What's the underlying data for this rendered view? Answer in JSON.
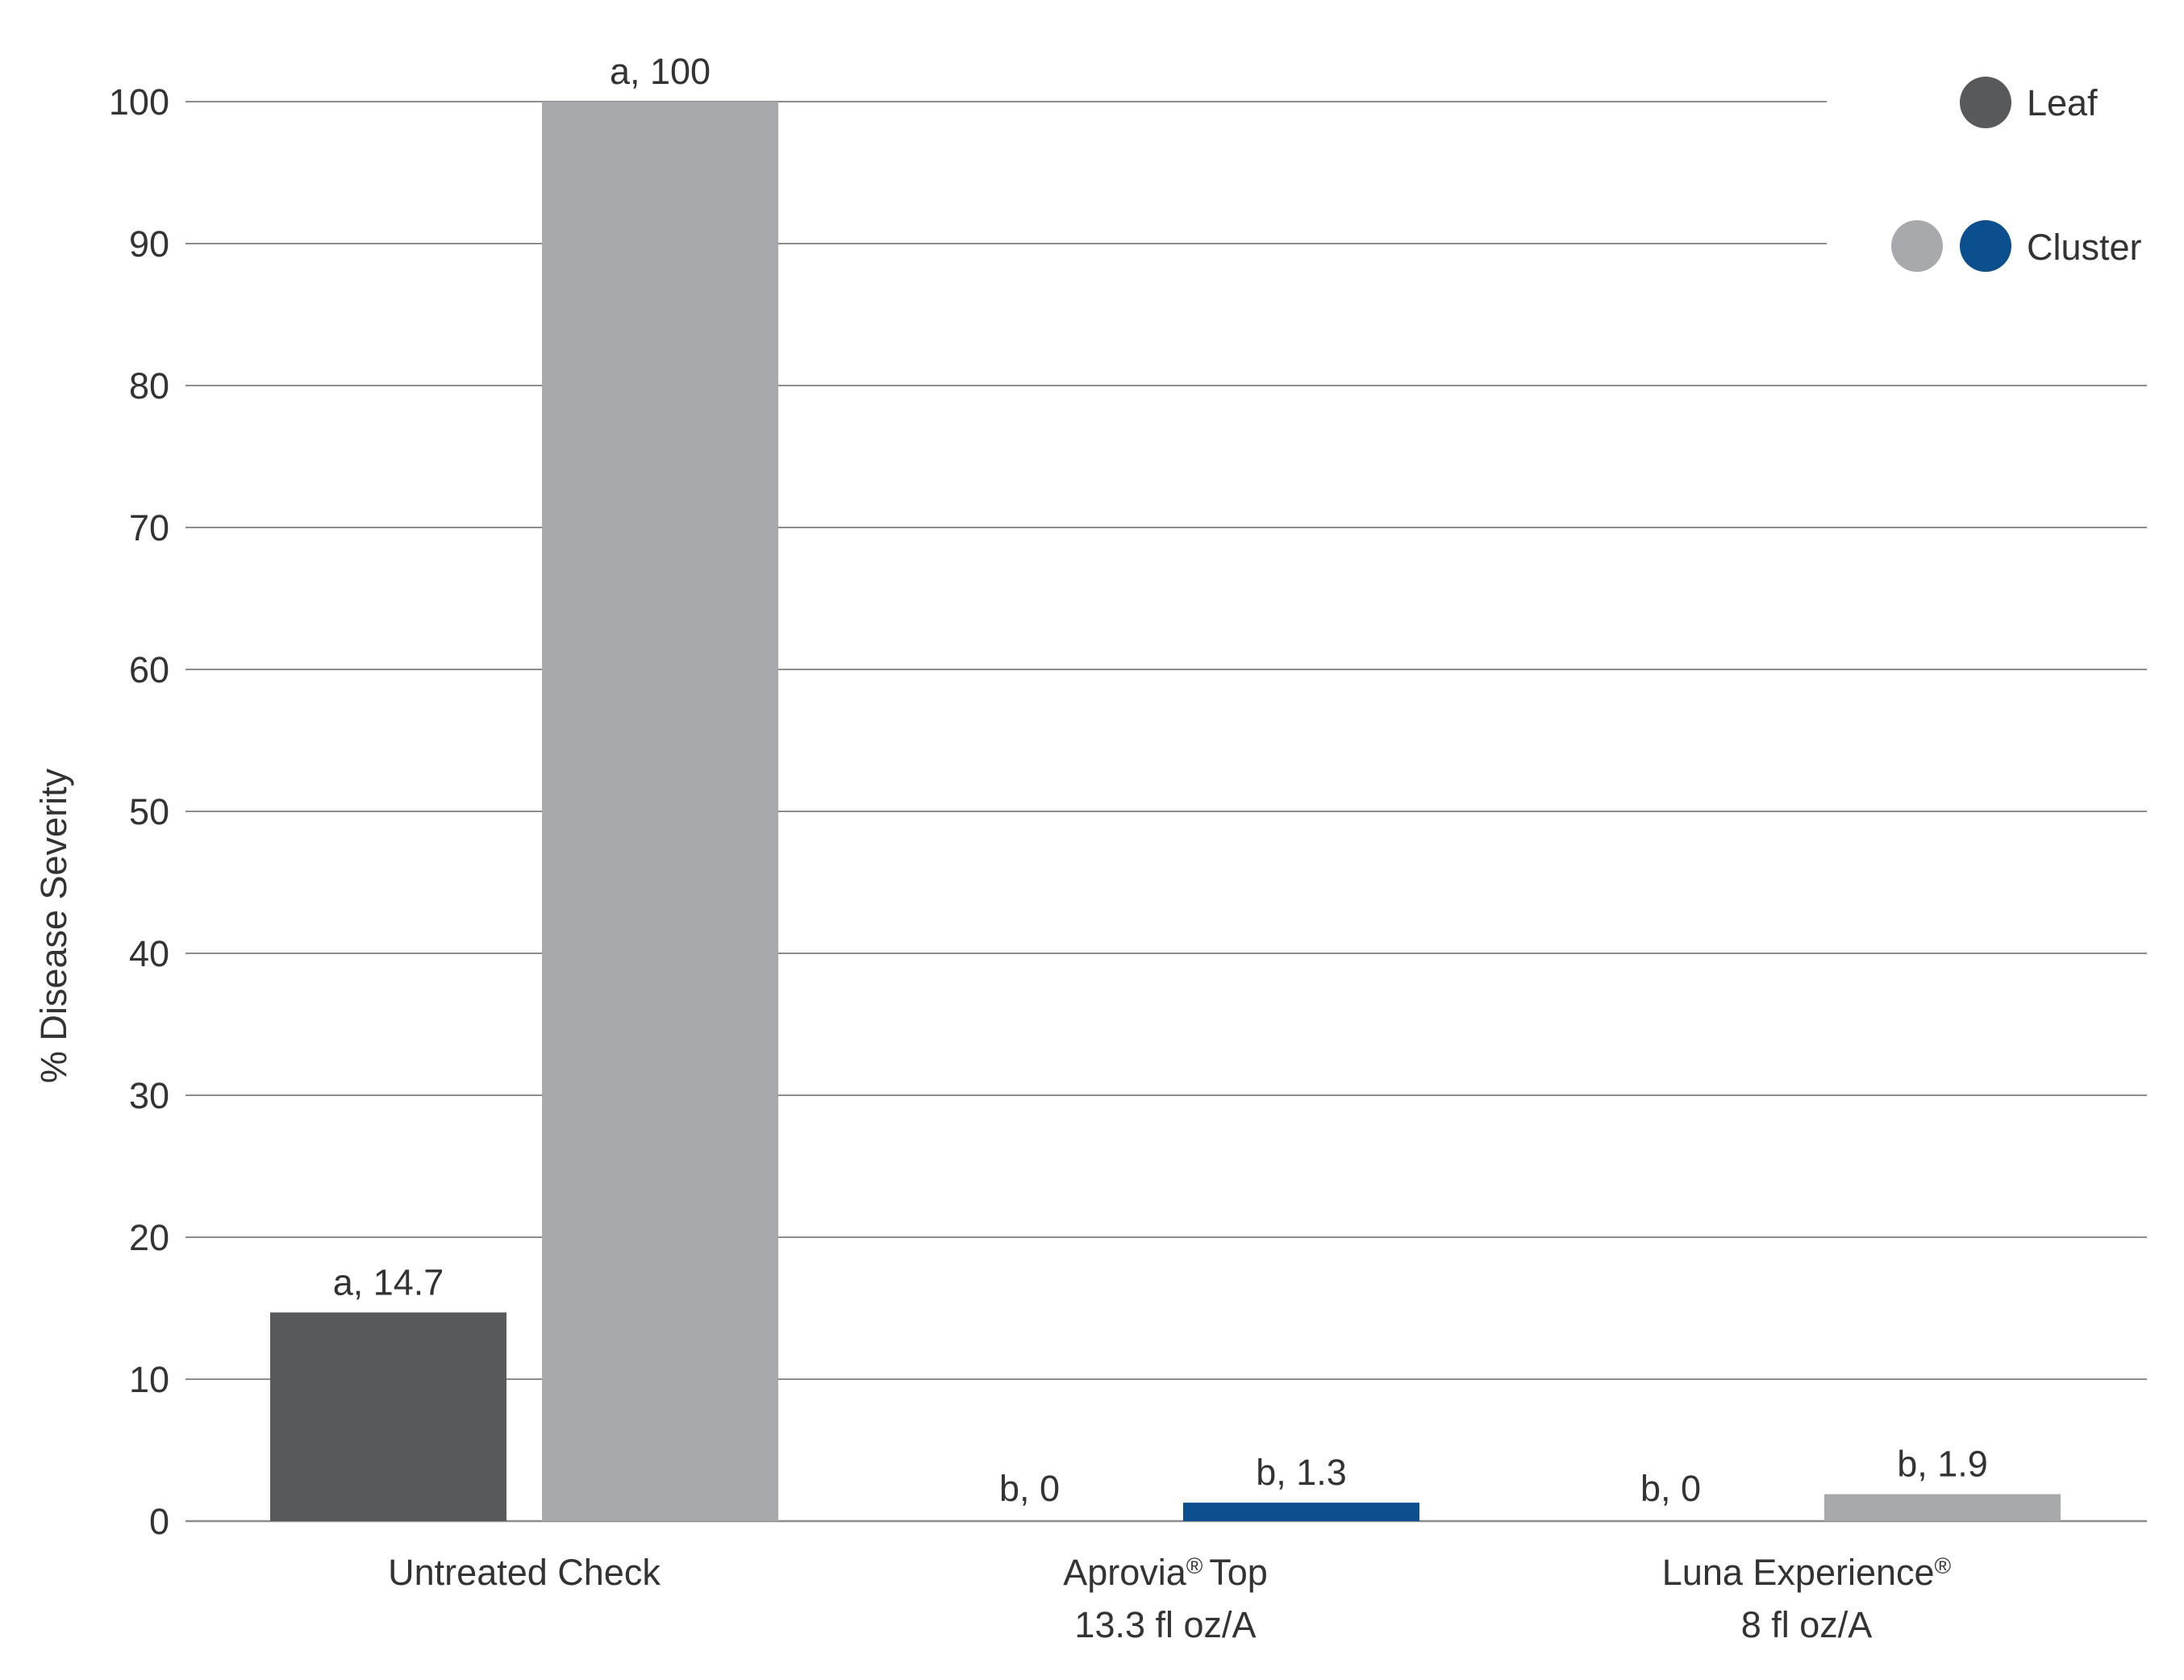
{
  "chart_data": {
    "type": "bar",
    "ylabel": "% Disease Severity",
    "ylim": [
      0,
      100
    ],
    "yticks": [
      0,
      10,
      20,
      30,
      40,
      50,
      60,
      70,
      80,
      90,
      100
    ],
    "grid": true,
    "legend_position": "top-right",
    "categories": [
      {
        "lines": [
          "Untreated Check"
        ]
      },
      {
        "lines": [
          "Aprovia",
          "® ",
          "Top",
          "13.3 fl oz/A"
        ]
      },
      {
        "lines": [
          "Luna Experience",
          "®",
          "8 fl oz/A"
        ]
      }
    ],
    "series": [
      {
        "name": "Leaf",
        "values": [
          14.7,
          0,
          0
        ],
        "labels": [
          "a, 14.7",
          "b, 0",
          "b, 0"
        ],
        "colors": [
          "#58595b",
          "#58595b",
          "#58595b"
        ]
      },
      {
        "name": "Cluster",
        "values": [
          100,
          1.3,
          1.9
        ],
        "labels": [
          "a, 100",
          "b, 1.3",
          "b, 1.9"
        ],
        "colors": [
          "#a7a9ac",
          "#0b4f8e",
          "#a7a9ac"
        ]
      }
    ],
    "legend": [
      {
        "label": "Leaf",
        "swatches": [
          "#58595b"
        ]
      },
      {
        "label": "Cluster",
        "swatches": [
          "#a7a9ac",
          "#0b4f8e"
        ]
      }
    ]
  }
}
